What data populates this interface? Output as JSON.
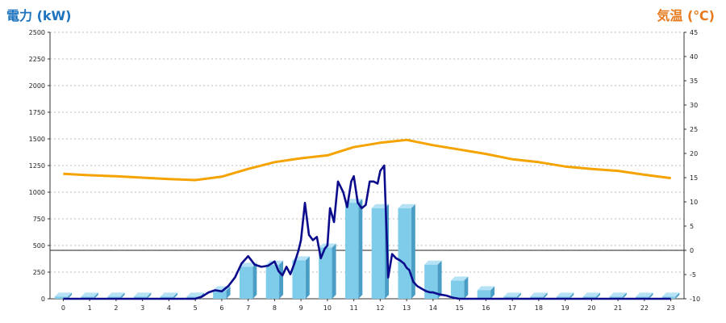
{
  "chart_data": {
    "type": "bar",
    "categories": [
      "0",
      "1",
      "2",
      "3",
      "4",
      "5",
      "6",
      "7",
      "8",
      "9",
      "10",
      "11",
      "12",
      "13",
      "14",
      "15",
      "16",
      "17",
      "18",
      "19",
      "20",
      "21",
      "22",
      "23"
    ],
    "ylabel": "電力 (kW)",
    "y2label": "気温 (℃)",
    "ylim": [
      0,
      2500
    ],
    "y2lim": [
      -10,
      45
    ],
    "yticks": [
      0,
      250,
      500,
      750,
      1000,
      1250,
      1500,
      1750,
      2000,
      2250,
      2500
    ],
    "y2ticks": [
      -10,
      -5,
      0,
      5,
      10,
      15,
      20,
      25,
      30,
      35,
      40,
      45
    ],
    "grid": true,
    "colors": {
      "left_axis_title": "#1e73be",
      "right_axis_title": "#e87a1e",
      "bars": "#7ecbea",
      "bars_side": "#4a9ec6",
      "power_line": "#0b0b8c",
      "temperature_line": "#f5a300",
      "grid": "#bbbbbb",
      "zero_line": "#222222"
    },
    "series": [
      {
        "kind": "bar",
        "axis": "left",
        "values": [
          20,
          20,
          20,
          20,
          20,
          20,
          80,
          300,
          320,
          360,
          480,
          900,
          850,
          850,
          320,
          170,
          80,
          20,
          20,
          20,
          20,
          20,
          20,
          20
        ]
      },
      {
        "kind": "line",
        "axis": "left",
        "x": [
          0,
          0.5,
          1,
          1.5,
          2,
          2.5,
          3,
          3.5,
          4,
          4.5,
          5,
          5.25,
          5.5,
          5.75,
          6,
          6.25,
          6.5,
          6.75,
          7,
          7.25,
          7.5,
          7.75,
          8,
          8.15,
          8.3,
          8.45,
          8.6,
          8.75,
          8.9,
          9,
          9.15,
          9.3,
          9.45,
          9.6,
          9.75,
          9.9,
          10,
          10.1,
          10.25,
          10.4,
          10.5,
          10.6,
          10.75,
          10.9,
          11,
          11.15,
          11.3,
          11.45,
          11.6,
          11.75,
          11.9,
          12,
          12.15,
          12.3,
          12.45,
          12.6,
          12.75,
          12.9,
          13,
          13.1,
          13.25,
          13.4,
          13.6,
          13.75,
          13.9,
          14,
          14.25,
          14.5,
          14.75,
          15,
          15.25,
          15.5,
          15.75,
          16,
          16.25,
          16.5,
          17,
          18,
          19,
          20,
          21,
          22,
          23
        ],
        "values": [
          0,
          0,
          0,
          0,
          0,
          0,
          0,
          0,
          0,
          0,
          0,
          20,
          60,
          80,
          70,
          120,
          200,
          330,
          400,
          320,
          300,
          310,
          350,
          260,
          220,
          300,
          230,
          330,
          450,
          550,
          900,
          600,
          550,
          580,
          380,
          470,
          500,
          850,
          720,
          1100,
          1050,
          1000,
          860,
          1100,
          1150,
          900,
          850,
          880,
          1100,
          1100,
          1080,
          1200,
          1250,
          200,
          420,
          380,
          360,
          330,
          290,
          270,
          160,
          120,
          90,
          70,
          60,
          60,
          40,
          30,
          10,
          0,
          0,
          0,
          0,
          0,
          0,
          0,
          0,
          0,
          0,
          0,
          0,
          0,
          0
        ]
      },
      {
        "kind": "line",
        "axis": "right",
        "x": [
          0,
          1,
          2,
          3,
          4,
          5,
          6,
          7,
          8,
          9,
          10,
          11,
          12,
          13,
          14,
          15,
          16,
          17,
          18,
          19,
          20,
          21,
          22,
          23
        ],
        "values": [
          15.8,
          15.5,
          15.3,
          15.0,
          14.7,
          14.5,
          15.2,
          16.8,
          18.2,
          19.0,
          19.6,
          21.3,
          22.2,
          22.8,
          21.7,
          20.8,
          19.9,
          18.8,
          18.2,
          17.3,
          16.8,
          16.4,
          15.6,
          14.9
        ]
      }
    ]
  }
}
